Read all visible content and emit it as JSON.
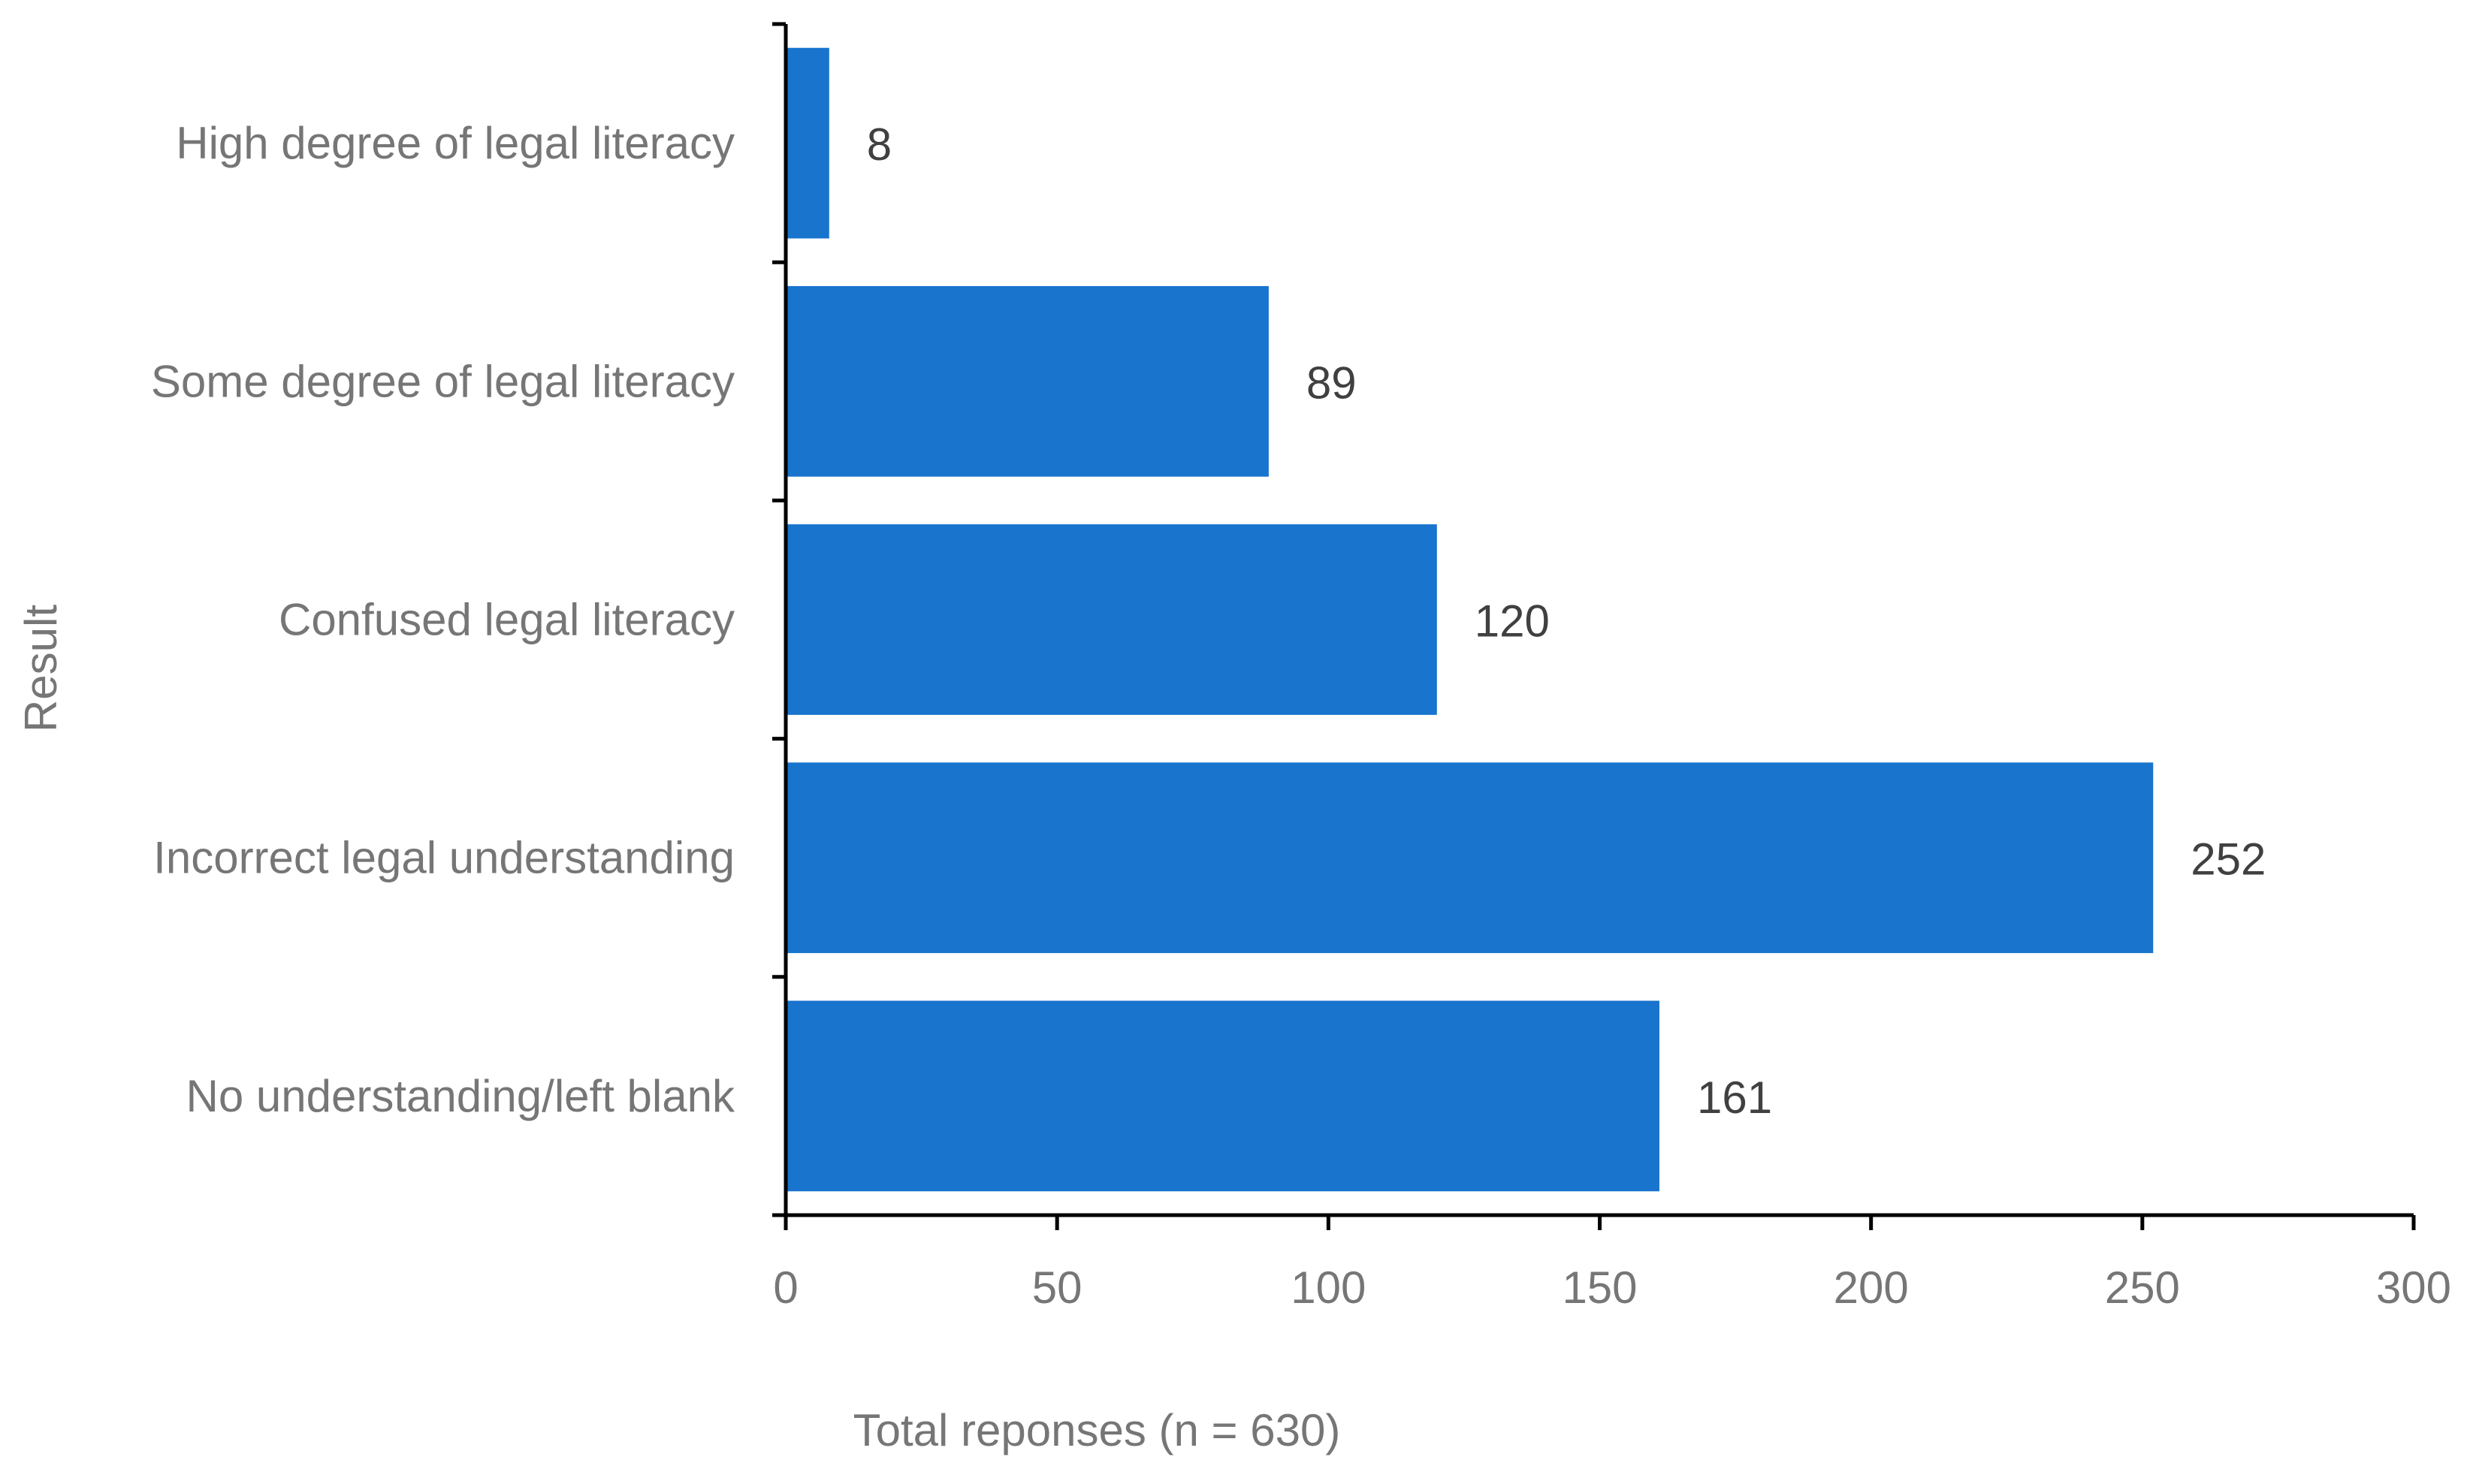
{
  "chart_data": {
    "type": "bar",
    "orientation": "horizontal",
    "title": "",
    "xlabel": "Total reponses (n = 630)",
    "ylabel": "Result",
    "categories": [
      "High degree of legal literacy",
      "Some degree of legal literacy",
      "Confused legal literacy",
      "Incorrect legal understanding",
      "No understanding/left blank"
    ],
    "values": [
      8,
      89,
      120,
      252,
      161
    ],
    "data_labels": [
      "8",
      "89",
      "120",
      "252",
      "161"
    ],
    "xlim": [
      0,
      300
    ],
    "xticks": [
      0,
      50,
      100,
      150,
      200,
      250,
      300
    ],
    "xtick_labels": [
      "0",
      "50",
      "100",
      "150",
      "200",
      "250",
      "300"
    ],
    "grid": false,
    "legend": "none",
    "bar_color": "#1874CD"
  }
}
